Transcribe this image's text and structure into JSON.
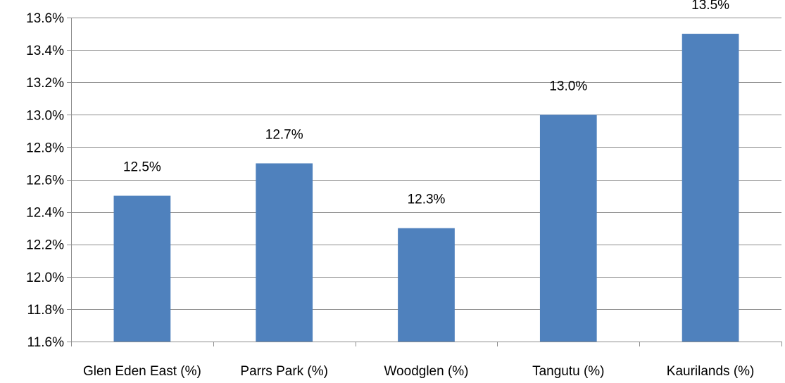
{
  "chart_data": {
    "type": "bar",
    "categories": [
      "Glen Eden East (%)",
      "Parrs Park (%)",
      "Woodglen (%)",
      "Tangutu (%)",
      "Kaurilands (%)"
    ],
    "values": [
      12.5,
      12.7,
      12.3,
      13.0,
      13.5
    ],
    "data_labels": [
      "12.5%",
      "12.7%",
      "12.3%",
      "13.0%",
      "13.5%"
    ],
    "ylim": [
      11.6,
      13.6
    ],
    "ytick_step": 0.2,
    "ytick_labels": [
      "11.6%",
      "11.8%",
      "12.0%",
      "12.2%",
      "12.4%",
      "12.6%",
      "12.8%",
      "13.0%",
      "13.2%",
      "13.4%",
      "13.6%"
    ],
    "title": "",
    "xlabel": "",
    "ylabel": "",
    "grid": true,
    "legend": "none",
    "bar_color": "#4f81bd",
    "grid_color": "#8c8c8c"
  }
}
